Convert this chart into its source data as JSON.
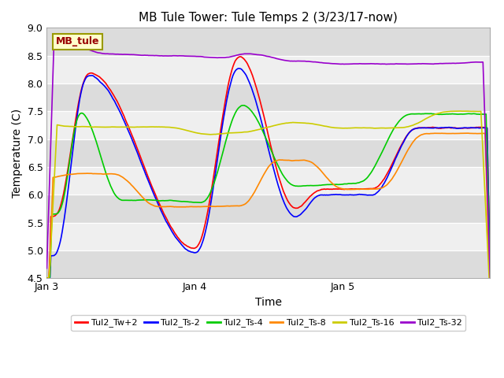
{
  "title": "MB Tule Tower: Tule Temps 2 (3/23/17-now)",
  "xlabel": "Time",
  "ylabel": "Temperature (C)",
  "ylim": [
    4.5,
    9.0
  ],
  "yticks": [
    4.5,
    5.0,
    5.5,
    6.0,
    6.5,
    7.0,
    7.5,
    8.0,
    8.5,
    9.0
  ],
  "xtick_labels": [
    "Jan 3",
    "Jan 4",
    "Jan 5"
  ],
  "xtick_positions": [
    0,
    1,
    2
  ],
  "xlim": [
    0,
    3
  ],
  "bg_color": "#ffffff",
  "plot_bg": "#ffffff",
  "band_color_dark": "#dcdcdc",
  "band_color_light": "#efefef",
  "legend_label": "MB_tule",
  "legend_bg": "#ffffcc",
  "legend_border": "#999900",
  "series": [
    {
      "name": "Tul2_Tw+2",
      "color": "#ff0000"
    },
    {
      "name": "Tul2_Ts-2",
      "color": "#0000ff"
    },
    {
      "name": "Tul2_Ts-4",
      "color": "#00cc00"
    },
    {
      "name": "Tul2_Ts-8",
      "color": "#ff8800"
    },
    {
      "name": "Tul2_Ts-16",
      "color": "#cccc00"
    },
    {
      "name": "Tul2_Ts-32",
      "color": "#9900cc"
    }
  ],
  "title_fontsize": 11,
  "label_fontsize": 10,
  "tick_fontsize": 9,
  "legend_fontsize": 8,
  "linewidth": 1.2,
  "figsize": [
    6.4,
    4.8
  ],
  "dpi": 100
}
